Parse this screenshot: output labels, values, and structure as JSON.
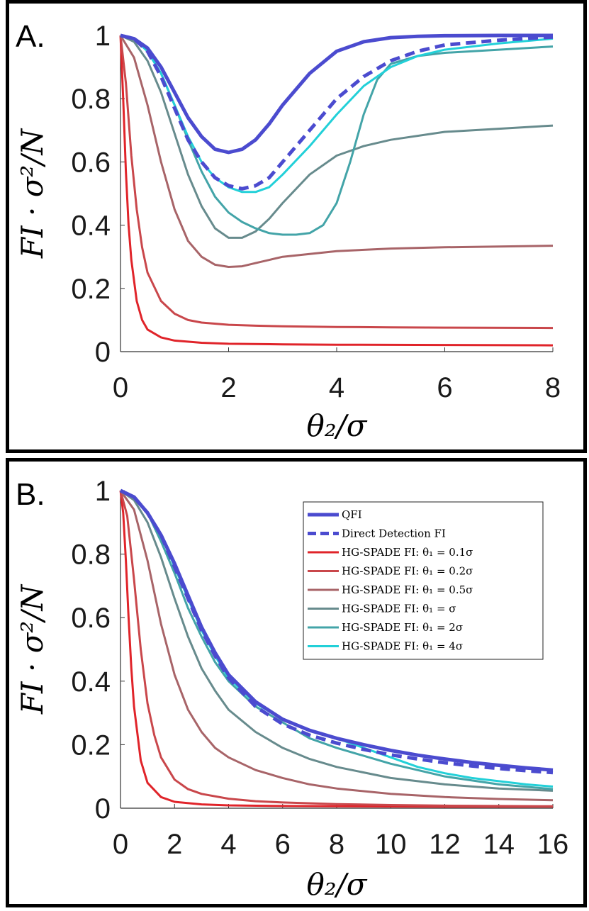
{
  "chart_data": [
    {
      "panel": "A.",
      "type": "line",
      "xlabel": "θ₂/σ",
      "ylabel": "FI · σ²/N",
      "xlim": [
        0,
        8
      ],
      "ylim": [
        0,
        1
      ],
      "xticks": [
        "0",
        "2",
        "4",
        "6",
        "8"
      ],
      "yticks": [
        "0",
        "0.2",
        "0.4",
        "0.6",
        "0.8",
        "1"
      ],
      "series": [
        {
          "name": "QFI",
          "color": "#4b4bcf",
          "dash": false,
          "width": 5,
          "x": [
            0,
            0.25,
            0.5,
            0.75,
            1,
            1.25,
            1.5,
            1.75,
            2,
            2.25,
            2.5,
            2.75,
            3,
            3.5,
            4,
            4.5,
            5,
            5.5,
            6,
            7,
            8
          ],
          "y": [
            1,
            0.99,
            0.96,
            0.9,
            0.82,
            0.74,
            0.68,
            0.64,
            0.63,
            0.64,
            0.67,
            0.72,
            0.78,
            0.88,
            0.95,
            0.98,
            0.993,
            0.997,
            0.999,
            1,
            1
          ]
        },
        {
          "name": "Direct Detection FI",
          "color": "#4b4bcf",
          "dash": true,
          "width": 5,
          "x": [
            0,
            0.25,
            0.5,
            0.75,
            1,
            1.25,
            1.5,
            1.75,
            2,
            2.25,
            2.5,
            2.75,
            3,
            3.5,
            4,
            4.5,
            5,
            5.5,
            6,
            7,
            8
          ],
          "y": [
            1,
            0.99,
            0.95,
            0.87,
            0.77,
            0.67,
            0.6,
            0.55,
            0.525,
            0.515,
            0.525,
            0.55,
            0.6,
            0.7,
            0.8,
            0.87,
            0.92,
            0.95,
            0.97,
            0.985,
            0.995
          ]
        },
        {
          "name": "HG-SPADE FI: θ₁ = 0.1σ",
          "color": "#e0242a",
          "dash": false,
          "width": 3,
          "x": [
            0,
            0.05,
            0.1,
            0.15,
            0.2,
            0.3,
            0.4,
            0.5,
            0.75,
            1,
            1.5,
            2,
            3,
            4,
            6,
            8
          ],
          "y": [
            1,
            0.8,
            0.57,
            0.4,
            0.29,
            0.16,
            0.1,
            0.07,
            0.045,
            0.035,
            0.028,
            0.025,
            0.023,
            0.022,
            0.021,
            0.02
          ]
        },
        {
          "name": "HG-SPADE FI: θ₁ = 0.2σ",
          "color": "#c9474b",
          "dash": false,
          "width": 3,
          "x": [
            0,
            0.1,
            0.2,
            0.3,
            0.4,
            0.5,
            0.75,
            1,
            1.25,
            1.5,
            2,
            2.5,
            3,
            4,
            5,
            6,
            8
          ],
          "y": [
            1,
            0.85,
            0.62,
            0.45,
            0.33,
            0.25,
            0.16,
            0.12,
            0.1,
            0.092,
            0.085,
            0.082,
            0.08,
            0.078,
            0.077,
            0.076,
            0.075
          ]
        },
        {
          "name": "HG-SPADE FI: θ₁ = 0.5σ",
          "color": "#a86468",
          "dash": false,
          "width": 3,
          "x": [
            0,
            0.25,
            0.5,
            0.75,
            1,
            1.25,
            1.5,
            1.75,
            2,
            2.25,
            2.5,
            3,
            4,
            5,
            6,
            8
          ],
          "y": [
            1,
            0.93,
            0.78,
            0.6,
            0.45,
            0.35,
            0.3,
            0.275,
            0.268,
            0.27,
            0.28,
            0.3,
            0.318,
            0.326,
            0.33,
            0.335
          ]
        },
        {
          "name": "HG-SPADE FI: θ₁ = σ",
          "color": "#678b8d",
          "dash": false,
          "width": 3,
          "x": [
            0,
            0.25,
            0.5,
            0.75,
            1,
            1.25,
            1.5,
            1.75,
            2,
            2.25,
            2.5,
            2.75,
            3,
            3.5,
            4,
            4.5,
            5,
            6,
            7,
            8
          ],
          "y": [
            1,
            0.98,
            0.92,
            0.82,
            0.69,
            0.56,
            0.46,
            0.39,
            0.36,
            0.36,
            0.38,
            0.42,
            0.47,
            0.56,
            0.62,
            0.65,
            0.67,
            0.695,
            0.705,
            0.715
          ]
        },
        {
          "name": "HG-SPADE FI: θ₁ = 2σ",
          "color": "#43a4a8",
          "dash": false,
          "width": 3,
          "x": [
            0,
            0.25,
            0.5,
            0.75,
            1,
            1.25,
            1.5,
            1.75,
            2,
            2.25,
            2.5,
            2.75,
            3,
            3.25,
            3.5,
            3.75,
            4,
            4.25,
            4.5,
            4.75,
            5,
            5.5,
            6,
            7,
            8
          ],
          "y": [
            1,
            0.99,
            0.95,
            0.88,
            0.78,
            0.67,
            0.57,
            0.49,
            0.44,
            0.41,
            0.39,
            0.375,
            0.37,
            0.37,
            0.375,
            0.4,
            0.47,
            0.6,
            0.75,
            0.86,
            0.91,
            0.935,
            0.945,
            0.955,
            0.965
          ]
        },
        {
          "name": "HG-SPADE FI: θ₁ = 4σ",
          "color": "#22d0d8",
          "dash": false,
          "width": 3,
          "x": [
            0,
            0.25,
            0.5,
            0.75,
            1,
            1.25,
            1.5,
            1.75,
            2,
            2.25,
            2.5,
            2.75,
            3,
            3.5,
            4,
            4.5,
            5,
            5.5,
            6,
            7,
            8
          ],
          "y": [
            1,
            0.99,
            0.95,
            0.88,
            0.78,
            0.68,
            0.6,
            0.55,
            0.52,
            0.505,
            0.505,
            0.52,
            0.56,
            0.65,
            0.75,
            0.84,
            0.9,
            0.935,
            0.955,
            0.975,
            0.99
          ]
        }
      ]
    },
    {
      "panel": "B.",
      "type": "line",
      "xlabel": "θ₂/σ",
      "ylabel": "FI · σ²/N",
      "xlim": [
        0,
        16
      ],
      "ylim": [
        0,
        1
      ],
      "xticks": [
        "0",
        "2",
        "4",
        "6",
        "8",
        "10",
        "12",
        "14",
        "16"
      ],
      "yticks": [
        "0",
        "0.2",
        "0.4",
        "0.6",
        "0.8",
        "1"
      ],
      "legend": {
        "placement": "top-right",
        "entries": [
          {
            "label": "QFI"
          },
          {
            "label": "Direct Detection FI"
          },
          {
            "label": "HG-SPADE FI: θ₁ = 0.1σ"
          },
          {
            "label": "HG-SPADE FI: θ₁ = 0.2σ"
          },
          {
            "label": "HG-SPADE FI: θ₁ = 0.5σ"
          },
          {
            "label": "HG-SPADE FI: θ₁ = σ"
          },
          {
            "label": "HG-SPADE FI: θ₁ = 2σ"
          },
          {
            "label": "HG-SPADE FI: θ₁ = 4σ"
          }
        ]
      },
      "series": [
        {
          "name": "QFI",
          "color": "#4b4bcf",
          "dash": false,
          "width": 5,
          "x": [
            0,
            0.5,
            1,
            1.5,
            2,
            2.5,
            3,
            3.5,
            4,
            5,
            6,
            7,
            8,
            9,
            10,
            11,
            12,
            13,
            14,
            15,
            16
          ],
          "y": [
            1,
            0.98,
            0.93,
            0.86,
            0.77,
            0.67,
            0.57,
            0.49,
            0.42,
            0.335,
            0.28,
            0.245,
            0.22,
            0.2,
            0.182,
            0.167,
            0.155,
            0.144,
            0.135,
            0.127,
            0.12
          ]
        },
        {
          "name": "Direct Detection FI",
          "color": "#4b4bcf",
          "dash": true,
          "width": 5,
          "x": [
            0,
            0.5,
            1,
            1.5,
            2,
            2.5,
            3,
            3.5,
            4,
            5,
            6,
            7,
            8,
            9,
            10,
            11,
            12,
            13,
            14,
            15,
            16
          ],
          "y": [
            1,
            0.98,
            0.93,
            0.86,
            0.76,
            0.66,
            0.56,
            0.48,
            0.41,
            0.32,
            0.265,
            0.23,
            0.205,
            0.185,
            0.168,
            0.155,
            0.143,
            0.133,
            0.125,
            0.118,
            0.112
          ]
        },
        {
          "name": "HG-SPADE FI: θ₁ = 0.1σ",
          "color": "#e0242a",
          "dash": false,
          "width": 3,
          "x": [
            0,
            0.1,
            0.2,
            0.3,
            0.4,
            0.5,
            0.75,
            1,
            1.5,
            2,
            3,
            4,
            6,
            8,
            12,
            16
          ],
          "y": [
            1,
            0.93,
            0.78,
            0.6,
            0.44,
            0.32,
            0.15,
            0.08,
            0.035,
            0.02,
            0.012,
            0.009,
            0.007,
            0.006,
            0.005,
            0.005
          ]
        },
        {
          "name": "HG-SPADE FI: θ₁ = 0.2σ",
          "color": "#c9474b",
          "dash": false,
          "width": 3,
          "x": [
            0,
            0.25,
            0.5,
            0.75,
            1,
            1.25,
            1.5,
            2,
            2.5,
            3,
            4,
            5,
            6,
            8,
            10,
            12,
            16
          ],
          "y": [
            1,
            0.92,
            0.72,
            0.5,
            0.33,
            0.23,
            0.16,
            0.09,
            0.06,
            0.045,
            0.03,
            0.022,
            0.018,
            0.013,
            0.01,
            0.008,
            0.006
          ]
        },
        {
          "name": "HG-SPADE FI: θ₁ = 0.5σ",
          "color": "#a86468",
          "dash": false,
          "width": 3,
          "x": [
            0,
            0.5,
            1,
            1.5,
            2,
            2.5,
            3,
            3.5,
            4,
            5,
            6,
            7,
            8,
            10,
            12,
            14,
            16
          ],
          "y": [
            1,
            0.94,
            0.78,
            0.58,
            0.42,
            0.31,
            0.24,
            0.19,
            0.16,
            0.12,
            0.095,
            0.075,
            0.062,
            0.045,
            0.035,
            0.029,
            0.025
          ]
        },
        {
          "name": "HG-SPADE FI: θ₁ = σ",
          "color": "#678b8d",
          "dash": false,
          "width": 3,
          "x": [
            0,
            0.5,
            1,
            1.5,
            2,
            2.5,
            3,
            3.5,
            4,
            5,
            6,
            7,
            8,
            10,
            12,
            14,
            16
          ],
          "y": [
            1,
            0.97,
            0.9,
            0.79,
            0.66,
            0.54,
            0.44,
            0.37,
            0.31,
            0.24,
            0.19,
            0.155,
            0.13,
            0.095,
            0.075,
            0.062,
            0.055
          ]
        },
        {
          "name": "HG-SPADE FI: θ₁ = 2σ",
          "color": "#43a4a8",
          "dash": false,
          "width": 3,
          "x": [
            0,
            0.5,
            1,
            1.5,
            2,
            2.5,
            3,
            3.5,
            4,
            5,
            6,
            7,
            8,
            10,
            12,
            14,
            16
          ],
          "y": [
            1,
            0.98,
            0.93,
            0.84,
            0.74,
            0.63,
            0.54,
            0.46,
            0.4,
            0.32,
            0.27,
            0.22,
            0.19,
            0.14,
            0.1,
            0.075,
            0.06
          ]
        },
        {
          "name": "HG-SPADE FI: θ₁ = 4σ",
          "color": "#22d0d8",
          "dash": false,
          "width": 3,
          "x": [
            0,
            0.5,
            1,
            1.5,
            2,
            2.5,
            3,
            3.5,
            4,
            5,
            6,
            7,
            8,
            9,
            10,
            11,
            12,
            13,
            14,
            15,
            16
          ],
          "y": [
            1,
            0.98,
            0.93,
            0.86,
            0.76,
            0.66,
            0.56,
            0.48,
            0.41,
            0.33,
            0.28,
            0.245,
            0.22,
            0.19,
            0.16,
            0.13,
            0.11,
            0.095,
            0.085,
            0.075,
            0.068
          ]
        }
      ]
    }
  ]
}
